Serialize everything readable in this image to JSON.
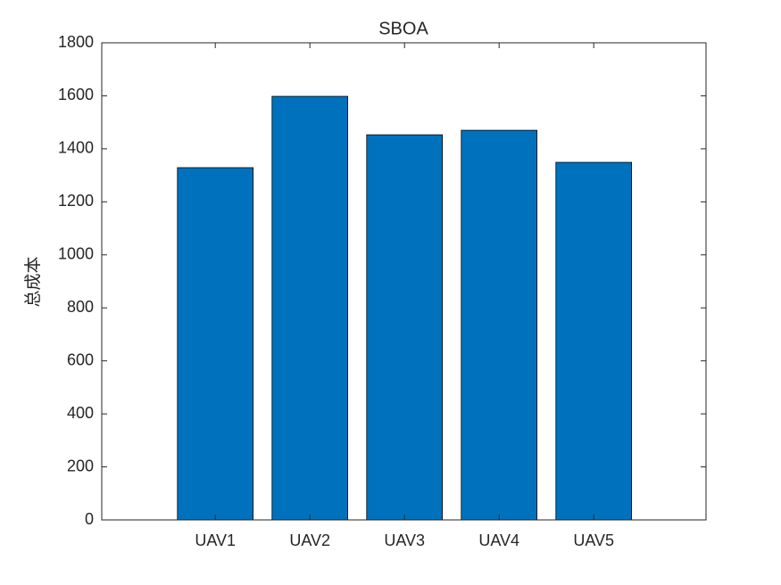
{
  "chart_data": {
    "type": "bar",
    "title": "SBOA",
    "ylabel": "总成本",
    "categories": [
      "UAV1",
      "UAV2",
      "UAV3",
      "UAV4",
      "UAV5"
    ],
    "values": [
      1329,
      1598,
      1453,
      1470,
      1349
    ],
    "color": "#0072bd",
    "ylim": [
      0,
      1800
    ],
    "yticks": [
      0,
      200,
      400,
      600,
      800,
      1000,
      1200,
      1400,
      1600,
      1800
    ]
  }
}
